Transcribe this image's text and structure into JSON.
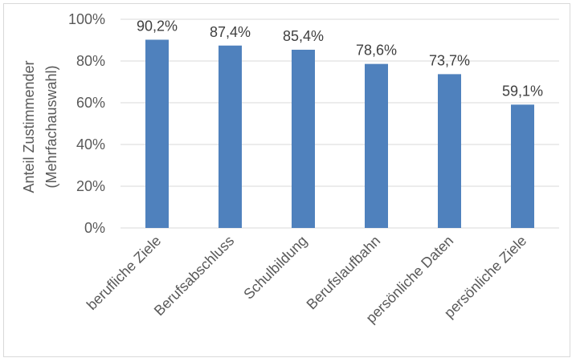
{
  "chart_data": {
    "type": "bar",
    "categories": [
      "berufliche Ziele",
      "Berufsabschluss",
      "Schulbildung",
      "Berufslaufbahn",
      "persönliche Daten",
      "persönliche Ziele"
    ],
    "values": [
      90.2,
      87.4,
      85.4,
      78.6,
      73.7,
      59.1
    ],
    "data_labels": [
      "90,2%",
      "87,4%",
      "85,4%",
      "78,6%",
      "73,7%",
      "59,1%"
    ],
    "ylabel_line1": "Anteil Zustimmender",
    "ylabel_line2": "(Mehrfachauswahl)",
    "ylim": [
      0,
      100
    ],
    "y_ticks": [
      0,
      20,
      40,
      60,
      80,
      100
    ],
    "y_tick_labels": [
      "0%",
      "20%",
      "40%",
      "60%",
      "80%",
      "100%"
    ],
    "grid": true,
    "legend": "none",
    "bar_color": "#4f81bd",
    "grid_color": "#d9d9d9"
  }
}
